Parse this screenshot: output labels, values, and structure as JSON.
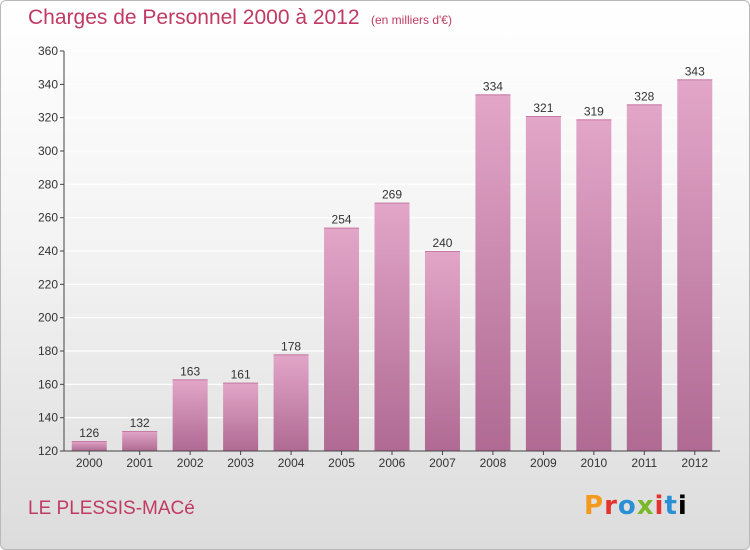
{
  "header": {
    "title": "Charges de Personnel 2000 à 2012",
    "subtitle": "(en milliers d'€)"
  },
  "footer": {
    "town": "LE PLESSIS-MACé",
    "logo_letters": [
      "P",
      "r",
      "o",
      "x",
      "i",
      "t",
      "i"
    ]
  },
  "colors": {
    "title": "#c03a63",
    "bar_top": "#e2a6c8",
    "bar_bottom": "#b06a93",
    "axis": "#444444",
    "grid": "#ffffff"
  },
  "chart_data": {
    "type": "bar",
    "title": "Charges de Personnel 2000 à 2012",
    "subtitle": "(en milliers d'€)",
    "xlabel": "",
    "ylabel": "",
    "categories": [
      "2000",
      "2001",
      "2002",
      "2003",
      "2004",
      "2005",
      "2006",
      "2007",
      "2008",
      "2009",
      "2010",
      "2011",
      "2012"
    ],
    "values": [
      126,
      132,
      163,
      161,
      178,
      254,
      269,
      240,
      334,
      321,
      319,
      328,
      343
    ],
    "ylim": [
      120,
      360
    ],
    "yticks": [
      120,
      140,
      160,
      180,
      200,
      220,
      240,
      260,
      280,
      300,
      320,
      340,
      360
    ],
    "grid": true,
    "data_labels": true
  }
}
